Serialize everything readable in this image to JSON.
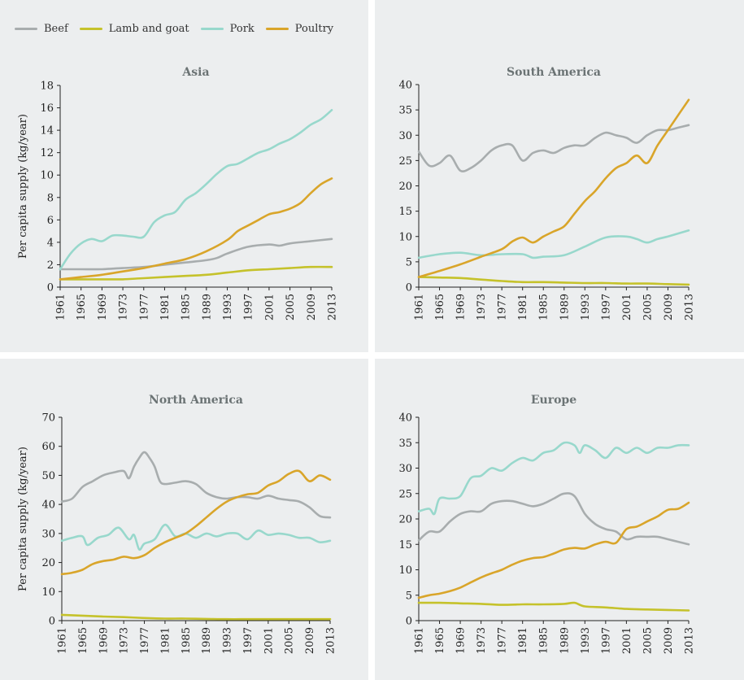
{
  "legend": {
    "items": [
      {
        "label": "Beef",
        "color": "#a8adae"
      },
      {
        "label": "Lamb and goat",
        "color": "#c5c22b"
      },
      {
        "label": "Pork",
        "color": "#98d8cc"
      },
      {
        "label": "Poultry",
        "color": "#d9a52a"
      }
    ]
  },
  "chart_data": [
    {
      "type": "line",
      "title": "Asia",
      "ylabel": "Per capita supply (kg/year)",
      "xlabel": "",
      "xlim": [
        1961,
        2013
      ],
      "ylim": [
        0,
        18
      ],
      "yticks": [
        0,
        2,
        4,
        6,
        8,
        10,
        12,
        14,
        16,
        18
      ],
      "xticks": [
        1961,
        1965,
        1969,
        1973,
        1977,
        1981,
        1985,
        1989,
        1993,
        1997,
        2001,
        2005,
        2009,
        2013
      ],
      "series": [
        {
          "name": "Beef",
          "x": [
            1961,
            1965,
            1969,
            1973,
            1977,
            1981,
            1985,
            1989,
            1991,
            1993,
            1997,
            2001,
            2003,
            2005,
            2009,
            2013
          ],
          "values": [
            1.6,
            1.6,
            1.6,
            1.7,
            1.8,
            2.0,
            2.2,
            2.4,
            2.6,
            3.0,
            3.6,
            3.8,
            3.7,
            3.9,
            4.1,
            4.3
          ]
        },
        {
          "name": "Lamb and goat",
          "x": [
            1961,
            1965,
            1969,
            1973,
            1977,
            1981,
            1985,
            1989,
            1993,
            1997,
            2001,
            2005,
            2009,
            2013
          ],
          "values": [
            0.7,
            0.7,
            0.7,
            0.7,
            0.8,
            0.9,
            1.0,
            1.1,
            1.3,
            1.5,
            1.6,
            1.7,
            1.8,
            1.8
          ]
        },
        {
          "name": "Pork",
          "x": [
            1961,
            1963,
            1965,
            1967,
            1969,
            1971,
            1973,
            1975,
            1977,
            1979,
            1981,
            1983,
            1985,
            1987,
            1989,
            1991,
            1993,
            1995,
            1997,
            1999,
            2001,
            2003,
            2005,
            2007,
            2009,
            2011,
            2013
          ],
          "values": [
            1.6,
            3.0,
            3.9,
            4.3,
            4.1,
            4.6,
            4.6,
            4.5,
            4.5,
            5.8,
            6.4,
            6.7,
            7.8,
            8.4,
            9.2,
            10.1,
            10.8,
            11.0,
            11.5,
            12.0,
            12.3,
            12.8,
            13.2,
            13.8,
            14.5,
            15.0,
            15.8
          ]
        },
        {
          "name": "Poultry",
          "x": [
            1961,
            1965,
            1969,
            1973,
            1977,
            1981,
            1985,
            1989,
            1993,
            1995,
            1997,
            1999,
            2001,
            2003,
            2005,
            2007,
            2009,
            2011,
            2013
          ],
          "values": [
            0.7,
            0.9,
            1.1,
            1.4,
            1.7,
            2.1,
            2.5,
            3.2,
            4.2,
            5.0,
            5.5,
            6.0,
            6.5,
            6.7,
            7.0,
            7.5,
            8.4,
            9.2,
            9.7
          ]
        }
      ]
    },
    {
      "type": "line",
      "title": "South America",
      "ylabel": "",
      "xlabel": "",
      "xlim": [
        1961,
        2013
      ],
      "ylim": [
        0,
        40
      ],
      "yticks": [
        0,
        5,
        10,
        15,
        20,
        25,
        30,
        35,
        40
      ],
      "xticks": [
        1961,
        1965,
        1969,
        1973,
        1977,
        1981,
        1985,
        1989,
        1993,
        1997,
        2001,
        2005,
        2009,
        2013
      ],
      "series": [
        {
          "name": "Beef",
          "x": [
            1961,
            1963,
            1965,
            1967,
            1969,
            1971,
            1973,
            1975,
            1977,
            1979,
            1981,
            1983,
            1985,
            1987,
            1989,
            1991,
            1993,
            1995,
            1997,
            1999,
            2001,
            2003,
            2005,
            2007,
            2009,
            2011,
            2013
          ],
          "values": [
            26.8,
            24.0,
            24.5,
            26.0,
            23.0,
            23.5,
            25.0,
            27.0,
            28.0,
            28.0,
            25.0,
            26.5,
            27.0,
            26.5,
            27.5,
            28.0,
            28.0,
            29.5,
            30.5,
            30.0,
            29.5,
            28.5,
            30.0,
            31.0,
            31.0,
            31.5,
            32.0
          ]
        },
        {
          "name": "Lamb and goat",
          "x": [
            1961,
            1965,
            1969,
            1973,
            1977,
            1981,
            1985,
            1989,
            1993,
            1997,
            2001,
            2005,
            2009,
            2013
          ],
          "values": [
            2.0,
            1.9,
            1.8,
            1.5,
            1.2,
            1.0,
            1.0,
            0.9,
            0.8,
            0.8,
            0.7,
            0.7,
            0.6,
            0.5
          ]
        },
        {
          "name": "Pork",
          "x": [
            1961,
            1965,
            1969,
            1973,
            1977,
            1981,
            1983,
            1985,
            1989,
            1993,
            1997,
            2001,
            2003,
            2005,
            2007,
            2009,
            2013
          ],
          "values": [
            5.8,
            6.5,
            6.8,
            6.3,
            6.5,
            6.5,
            5.8,
            6.0,
            6.3,
            8.0,
            9.8,
            10.0,
            9.5,
            8.8,
            9.5,
            10.0,
            11.2
          ]
        },
        {
          "name": "Poultry",
          "x": [
            1961,
            1965,
            1969,
            1973,
            1977,
            1979,
            1981,
            1983,
            1985,
            1987,
            1989,
            1991,
            1993,
            1995,
            1997,
            1999,
            2001,
            2003,
            2005,
            2007,
            2009,
            2011,
            2013
          ],
          "values": [
            2.0,
            3.2,
            4.5,
            6.0,
            7.5,
            9.0,
            9.8,
            8.8,
            10.0,
            11.0,
            12.0,
            14.5,
            17.0,
            19.0,
            21.5,
            23.5,
            24.5,
            26.0,
            24.5,
            28.0,
            31.0,
            34.0,
            37.0
          ]
        }
      ]
    },
    {
      "type": "line",
      "title": "North America",
      "ylabel": "Per capita supply (kg/year)",
      "xlabel": "",
      "xlim": [
        1961,
        2013
      ],
      "ylim": [
        0,
        70
      ],
      "yticks": [
        0,
        10,
        20,
        30,
        40,
        50,
        60,
        70
      ],
      "xticks": [
        1961,
        1965,
        1969,
        1973,
        1977,
        1981,
        1985,
        1989,
        1993,
        1997,
        2001,
        2005,
        2009,
        2013
      ],
      "series": [
        {
          "name": "Beef",
          "x": [
            1961,
            1963,
            1965,
            1967,
            1969,
            1971,
            1973,
            1974,
            1975,
            1976,
            1977,
            1978,
            1979,
            1980,
            1981,
            1983,
            1985,
            1987,
            1989,
            1991,
            1993,
            1995,
            1997,
            1999,
            2001,
            2003,
            2005,
            2007,
            2009,
            2011,
            2013
          ],
          "values": [
            41.0,
            42.0,
            46.0,
            48.0,
            50.0,
            51.0,
            51.5,
            49.0,
            53.0,
            56.0,
            58.0,
            56.0,
            53.0,
            48.0,
            47.0,
            47.5,
            48.0,
            47.0,
            44.0,
            42.5,
            42.0,
            42.5,
            42.5,
            42.0,
            43.0,
            42.0,
            41.5,
            41.0,
            39.0,
            36.0,
            35.5
          ]
        },
        {
          "name": "Lamb and goat",
          "x": [
            1961,
            1965,
            1969,
            1973,
            1977,
            1981,
            1985,
            1989,
            1993,
            1997,
            2001,
            2005,
            2009,
            2013
          ],
          "values": [
            2.0,
            1.7,
            1.4,
            1.2,
            0.9,
            0.7,
            0.7,
            0.6,
            0.5,
            0.5,
            0.5,
            0.5,
            0.5,
            0.5
          ]
        },
        {
          "name": "Pork",
          "x": [
            1961,
            1963,
            1965,
            1966,
            1968,
            1970,
            1972,
            1974,
            1975,
            1976,
            1977,
            1979,
            1981,
            1983,
            1985,
            1987,
            1989,
            1991,
            1993,
            1995,
            1997,
            1999,
            2001,
            2003,
            2005,
            2007,
            2009,
            2011,
            2013
          ],
          "values": [
            27.5,
            28.5,
            29.0,
            26.0,
            28.5,
            29.5,
            32.0,
            28.0,
            29.5,
            24.5,
            26.5,
            28.0,
            33.0,
            29.0,
            30.0,
            28.5,
            30.0,
            29.0,
            30.0,
            30.0,
            28.0,
            31.0,
            29.5,
            30.0,
            29.5,
            28.5,
            28.5,
            27.0,
            27.5
          ]
        },
        {
          "name": "Poultry",
          "x": [
            1961,
            1963,
            1965,
            1967,
            1969,
            1971,
            1973,
            1975,
            1977,
            1979,
            1981,
            1983,
            1985,
            1987,
            1989,
            1991,
            1993,
            1995,
            1997,
            1999,
            2001,
            2003,
            2005,
            2007,
            2009,
            2011,
            2013
          ],
          "values": [
            16.0,
            16.5,
            17.5,
            19.5,
            20.5,
            21.0,
            22.0,
            21.5,
            22.5,
            25.0,
            27.0,
            28.5,
            30.0,
            32.5,
            35.5,
            38.5,
            41.0,
            42.5,
            43.5,
            44.0,
            46.5,
            48.0,
            50.5,
            51.5,
            48.0,
            50.0,
            48.5
          ]
        }
      ]
    },
    {
      "type": "line",
      "title": "Europe",
      "ylabel": "",
      "xlabel": "",
      "xlim": [
        1961,
        2013
      ],
      "ylim": [
        0,
        40
      ],
      "yticks": [
        0,
        5,
        10,
        15,
        20,
        25,
        30,
        35,
        40
      ],
      "xticks": [
        1961,
        1965,
        1969,
        1973,
        1977,
        1981,
        1985,
        1989,
        1993,
        1997,
        2001,
        2005,
        2009,
        2013
      ],
      "series": [
        {
          "name": "Beef",
          "x": [
            1961,
            1963,
            1965,
            1967,
            1969,
            1971,
            1973,
            1975,
            1977,
            1979,
            1981,
            1983,
            1985,
            1987,
            1989,
            1991,
            1993,
            1995,
            1997,
            1999,
            2001,
            2003,
            2005,
            2007,
            2009,
            2011,
            2013
          ],
          "values": [
            15.8,
            17.5,
            17.5,
            19.5,
            21.0,
            21.5,
            21.5,
            23.0,
            23.5,
            23.5,
            23.0,
            22.5,
            23.0,
            24.0,
            25.0,
            24.5,
            21.0,
            19.0,
            18.0,
            17.5,
            16.0,
            16.5,
            16.5,
            16.5,
            16.0,
            15.5,
            15.0
          ]
        },
        {
          "name": "Lamb and goat",
          "x": [
            1961,
            1965,
            1969,
            1973,
            1977,
            1981,
            1985,
            1989,
            1991,
            1993,
            1997,
            2001,
            2005,
            2009,
            2013
          ],
          "values": [
            3.5,
            3.5,
            3.4,
            3.3,
            3.1,
            3.2,
            3.2,
            3.3,
            3.5,
            2.8,
            2.6,
            2.3,
            2.2,
            2.1,
            2.0
          ]
        },
        {
          "name": "Pork",
          "x": [
            1961,
            1963,
            1964,
            1965,
            1967,
            1969,
            1971,
            1973,
            1975,
            1977,
            1979,
            1981,
            1983,
            1985,
            1987,
            1989,
            1991,
            1992,
            1993,
            1995,
            1997,
            1999,
            2001,
            2003,
            2005,
            2007,
            2009,
            2011,
            2013
          ],
          "values": [
            21.5,
            22.0,
            21.0,
            24.0,
            24.0,
            24.5,
            28.0,
            28.5,
            30.0,
            29.5,
            31.0,
            32.0,
            31.5,
            33.0,
            33.5,
            35.0,
            34.5,
            33.0,
            34.5,
            33.5,
            32.0,
            34.0,
            33.0,
            34.0,
            33.0,
            34.0,
            34.0,
            34.5,
            34.5
          ]
        },
        {
          "name": "Poultry",
          "x": [
            1961,
            1963,
            1965,
            1967,
            1969,
            1971,
            1973,
            1975,
            1977,
            1979,
            1981,
            1983,
            1985,
            1987,
            1989,
            1991,
            1993,
            1995,
            1997,
            1999,
            2001,
            2003,
            2005,
            2007,
            2009,
            2011,
            2013
          ],
          "values": [
            4.5,
            5.0,
            5.3,
            5.8,
            6.5,
            7.5,
            8.5,
            9.3,
            10.0,
            11.0,
            11.8,
            12.3,
            12.5,
            13.2,
            14.0,
            14.3,
            14.2,
            15.0,
            15.5,
            15.3,
            18.0,
            18.5,
            19.5,
            20.5,
            21.8,
            22.0,
            23.2
          ]
        }
      ]
    }
  ]
}
